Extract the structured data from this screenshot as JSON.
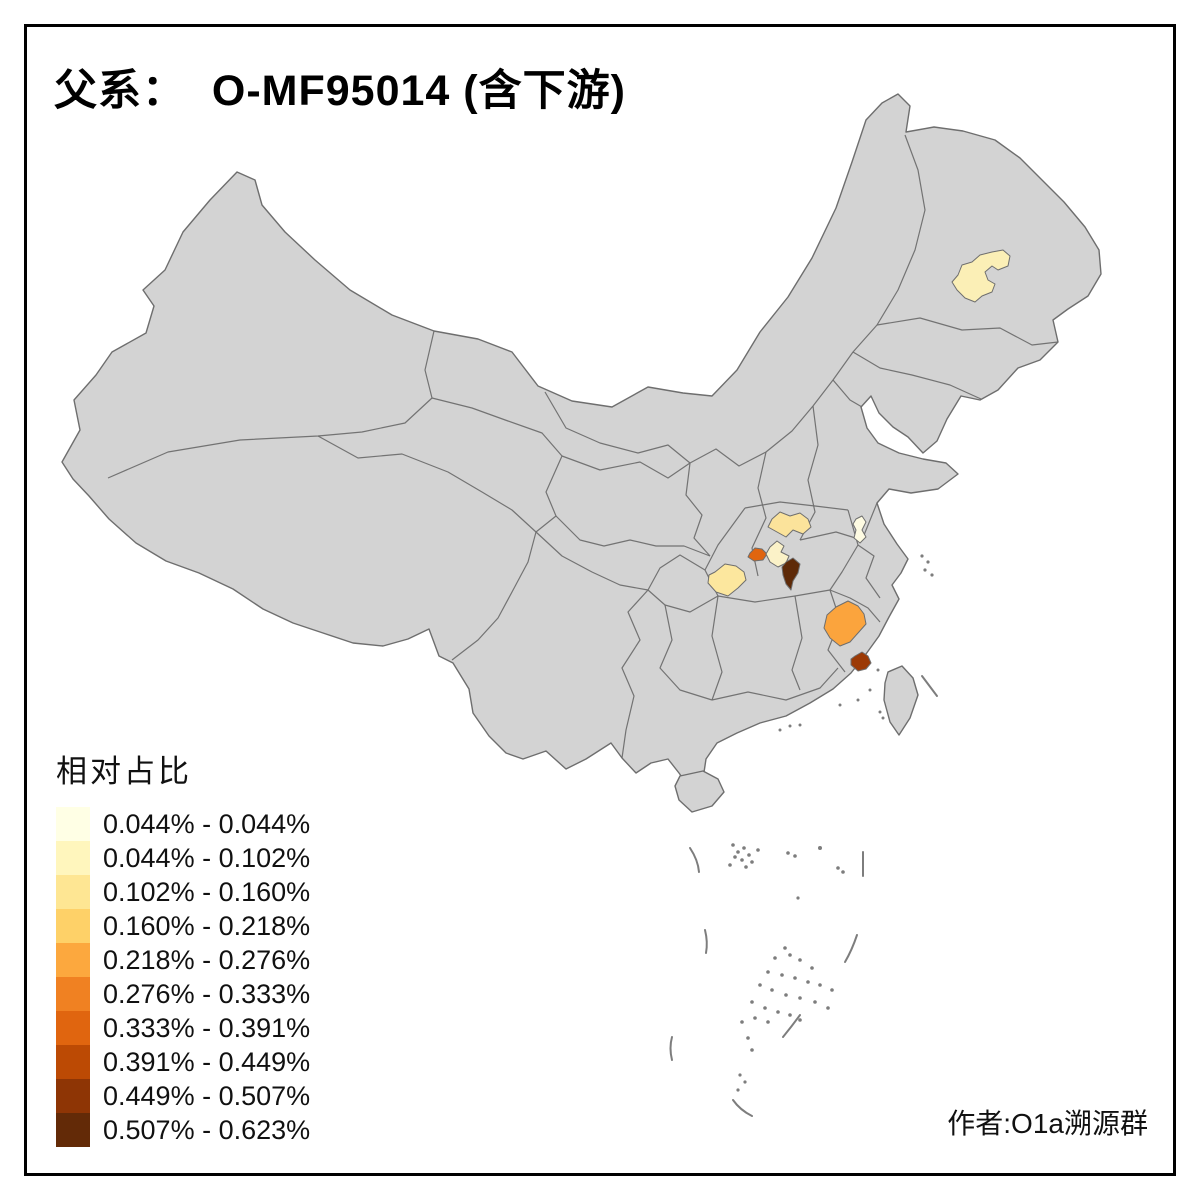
{
  "title": "父系：  O-MF95014 (含下游)",
  "author_credit": "作者:O1a溯源群",
  "legend": {
    "title": "相对占比",
    "items": [
      {
        "label": "0.044% - 0.044%",
        "color": "#FFFFE5"
      },
      {
        "label": "0.044% - 0.102%",
        "color": "#FFF6BD"
      },
      {
        "label": "0.102% - 0.160%",
        "color": "#FEE693"
      },
      {
        "label": "0.160% - 0.218%",
        "color": "#FED168"
      },
      {
        "label": "0.218% - 0.276%",
        "color": "#FCA83E"
      },
      {
        "label": "0.276% - 0.333%",
        "color": "#F08122"
      },
      {
        "label": "0.333% - 0.391%",
        "color": "#E0650F"
      },
      {
        "label": "0.391% - 0.449%",
        "color": "#BC4A04"
      },
      {
        "label": "0.449% - 0.507%",
        "color": "#8E3505"
      },
      {
        "label": "0.507% - 0.623%",
        "color": "#632A07"
      }
    ]
  },
  "map": {
    "base_fill": "#D3D3D3",
    "border_color": "#6E6E6E",
    "background": "#FFFFFF",
    "highlighted_regions": [
      {
        "name": "northeast-harbin-area",
        "value_range": "0.044% - 0.102%",
        "color": "#FBEFB6"
      },
      {
        "name": "hubei-north-area",
        "value_range": "0.102% - 0.160%",
        "color": "#FBE39B"
      },
      {
        "name": "hubei-west-small-area",
        "value_range": "0.333% - 0.391%",
        "color": "#E0650F"
      },
      {
        "name": "hubei-central-pale-area",
        "value_range": "0.044% - 0.102%",
        "color": "#FBF2C8"
      },
      {
        "name": "wuhan-area",
        "value_range": "0.507% - 0.623%",
        "color": "#5E2A08"
      },
      {
        "name": "chongqing-east-area",
        "value_range": "0.102% - 0.160%",
        "color": "#FCE79E"
      },
      {
        "name": "anhui-strip-area",
        "value_range": "0.044% - 0.044%",
        "color": "#FEFBE2"
      },
      {
        "name": "fujian-northwest-area",
        "value_range": "0.218% - 0.276%",
        "color": "#FBA43D"
      },
      {
        "name": "fujian-coastal-area",
        "value_range": "0.449% - 0.507%",
        "color": "#9C3A06"
      }
    ]
  }
}
